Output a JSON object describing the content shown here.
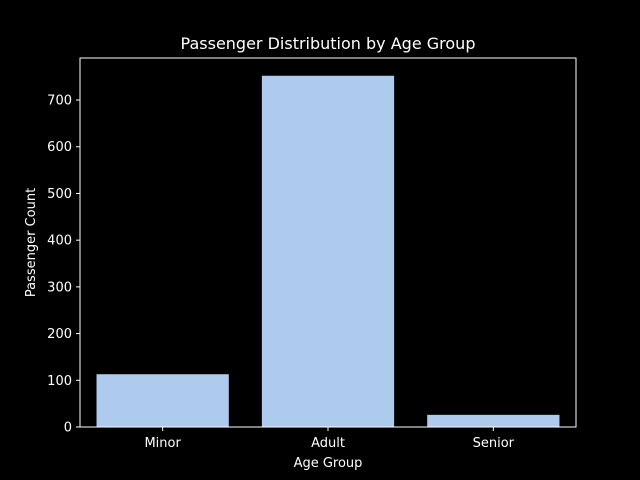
{
  "chart_data": {
    "type": "bar",
    "title": "Passenger Distribution by Age Group",
    "xlabel": "Age Group",
    "ylabel": "Passenger Count",
    "categories": [
      "Minor",
      "Adult",
      "Senior"
    ],
    "values": [
      113,
      752,
      26
    ],
    "ylim": [
      0,
      790
    ],
    "yticks": [
      0,
      100,
      200,
      300,
      400,
      500,
      600,
      700
    ],
    "grid": false,
    "colors": {
      "background": "#000000",
      "bar": "#aecbee",
      "foreground": "#ffffff"
    }
  }
}
